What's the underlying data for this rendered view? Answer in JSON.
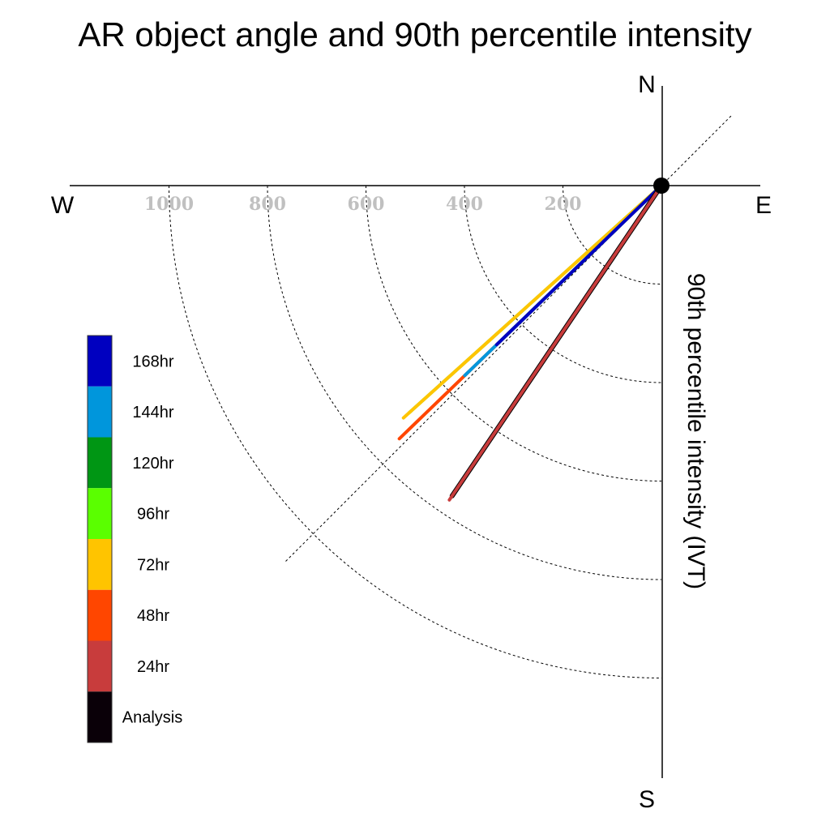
{
  "chart_data": {
    "type": "polar-vector",
    "title": "AR object angle and 90th percentile intensity",
    "ylabel": "90th percentile intensity (IVT)",
    "compass": {
      "north": "N",
      "south": "S",
      "east": "E",
      "west": "W"
    },
    "radial_ticks": [
      "200",
      "400",
      "600",
      "800",
      "1000"
    ],
    "radial_tick_values": [
      200,
      400,
      600,
      800,
      1000
    ],
    "radial_range": [
      0,
      1200
    ],
    "grid": true,
    "legend_position": "left",
    "legend": [
      "168hr",
      "144hr",
      "120hr",
      "96hr",
      "72hr",
      "48hr",
      "24hr",
      "Analysis"
    ],
    "legend_colors": [
      "#0000c0",
      "#0096dc",
      "#009614",
      "#5aff00",
      "#ffc400",
      "#ff4600",
      "#c83c3c",
      "#0a0008"
    ],
    "series": [
      {
        "name": "Analysis",
        "color": "#000000",
        "angle_deg": 214,
        "intensity": 760
      },
      {
        "name": "24hr",
        "color": "#c83c3c",
        "angle_deg": 214,
        "intensity": 770
      },
      {
        "name": "48hr",
        "color": "#ff4600",
        "angle_deg": 226,
        "intensity": 740
      },
      {
        "name": "72hr",
        "color": "#ffc400",
        "angle_deg": 228,
        "intensity": 705
      },
      {
        "name": "96hr",
        "color": "#5aff00",
        "angle_deg": 228,
        "intensity": 690
      },
      {
        "name": "120hr",
        "color": "#009614",
        "angle_deg": 226,
        "intensity": 440
      },
      {
        "name": "144hr",
        "color": "#0096dc",
        "angle_deg": 226,
        "intensity": 555
      },
      {
        "name": "168hr",
        "color": "#0000c0",
        "angle_deg": 226,
        "intensity": 465
      }
    ]
  }
}
